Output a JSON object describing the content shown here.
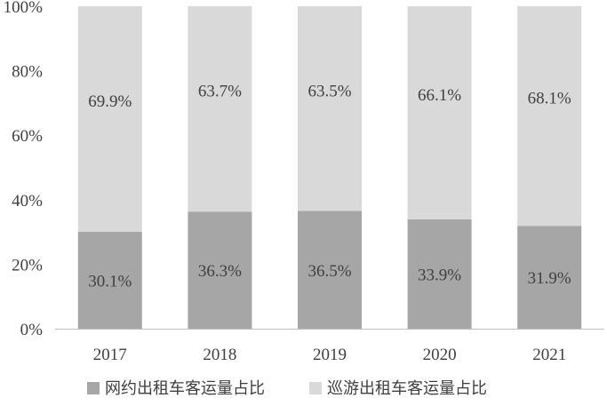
{
  "chart_data": {
    "type": "bar",
    "stacked": true,
    "categories": [
      "2017",
      "2018",
      "2019",
      "2020",
      "2021"
    ],
    "series": [
      {
        "name": "网约出租车客运量占比",
        "values": [
          30.1,
          36.3,
          36.5,
          33.9,
          31.9
        ],
        "labels": [
          "30.1%",
          "36.3%",
          "36.5%",
          "33.9%",
          "31.9%"
        ],
        "color": "#a6a6a6"
      },
      {
        "name": "巡游出租车客运量占比",
        "values": [
          69.9,
          63.7,
          63.5,
          66.1,
          68.1
        ],
        "labels": [
          "69.9%",
          "63.7%",
          "63.5%",
          "66.1%",
          "68.1%"
        ],
        "color": "#d9d9d9"
      }
    ],
    "yticks": [
      "0%",
      "20%",
      "40%",
      "60%",
      "80%",
      "100%"
    ],
    "ylim": [
      0,
      100
    ],
    "grid": false,
    "legend_position": "bottom"
  }
}
